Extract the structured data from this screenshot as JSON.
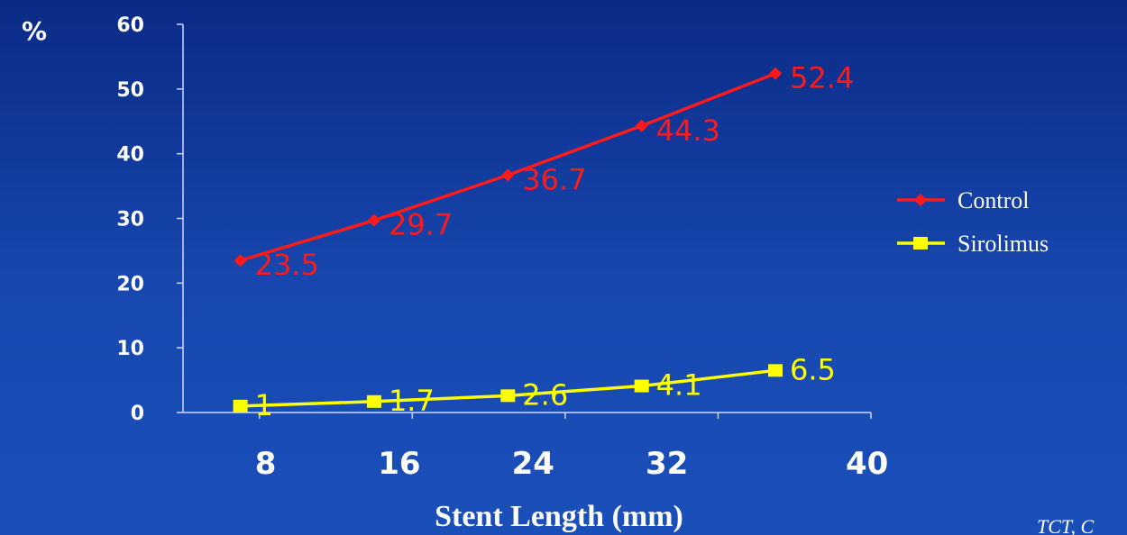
{
  "chart_data": {
    "type": "line",
    "title": "",
    "xlabel": "Stent Length (mm)",
    "ylabel": "%",
    "x_ticks": [
      "8",
      "16",
      "24",
      "32",
      "40"
    ],
    "y_ticks": [
      "0",
      "10",
      "20",
      "30",
      "40",
      "50",
      "60"
    ],
    "ylim": [
      0,
      60
    ],
    "xlim": [
      4,
      40
    ],
    "grid": false,
    "legend_position": "right",
    "series": [
      {
        "name": "Control",
        "color": "#ff1a1a",
        "marker": "diamond",
        "x": [
          7,
          14,
          21,
          28,
          35
        ],
        "values": [
          23.5,
          29.7,
          36.7,
          44.3,
          52.4
        ],
        "labels": [
          "23.5",
          "29.7",
          "36.7",
          "44.3",
          "52.4"
        ]
      },
      {
        "name": "Sirolimus",
        "color": "#ffff00",
        "marker": "square",
        "x": [
          7,
          14,
          21,
          28,
          35
        ],
        "values": [
          1,
          1.7,
          2.6,
          4.1,
          6.5
        ],
        "labels": [
          "1",
          "1.7",
          "2.6",
          "4.1",
          "6.5"
        ]
      }
    ]
  },
  "credit": "TCT, C"
}
